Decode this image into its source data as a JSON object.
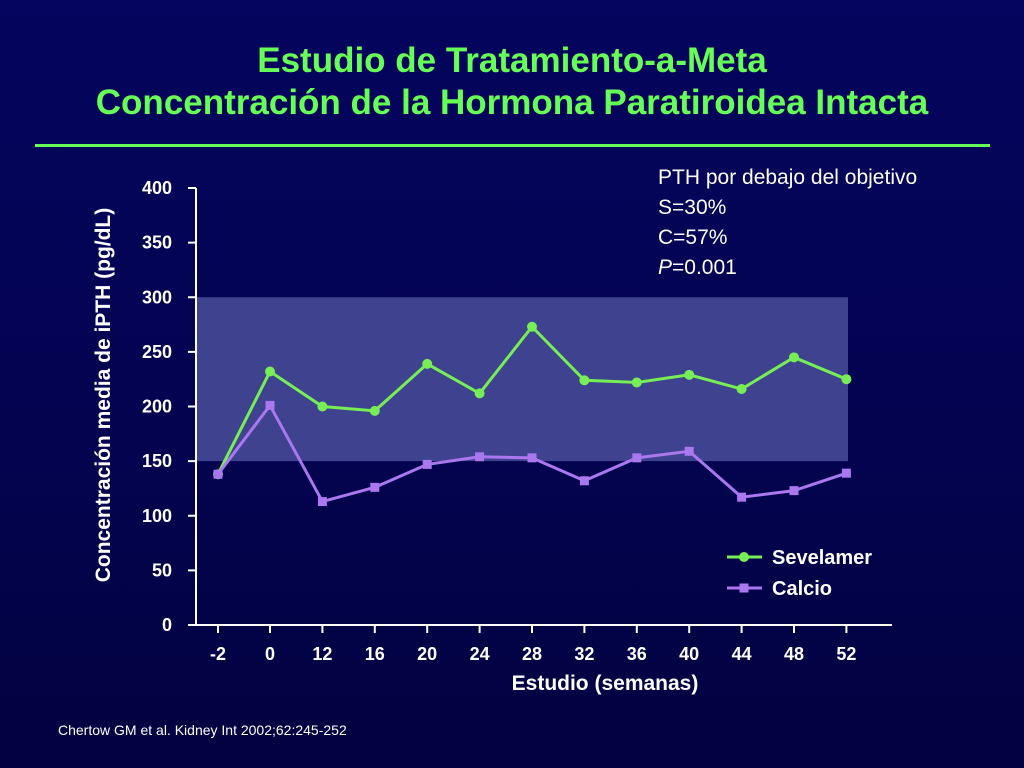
{
  "slide": {
    "title_line1": "Estudio de Tratamiento-a-Meta",
    "title_line2": "Concentración de la Hormona Paratiroidea Intacta",
    "citation": "Chertow GM et al. Kidney Int 2002;62:245-252",
    "accent_color": "#66ff55"
  },
  "annotation": {
    "line1": "PTH por debajo del objetivo",
    "line2": "S=30%",
    "line3": "C=57%",
    "line4_italic": "P",
    "line4_rest": "=0.001"
  },
  "chart_data": {
    "type": "line",
    "xlabel": "Estudio (semanas)",
    "ylabel": "Concentración media de iPTH (pg/dL)",
    "categories": [
      "-2",
      "0",
      "12",
      "16",
      "20",
      "24",
      "28",
      "32",
      "36",
      "40",
      "44",
      "48",
      "52"
    ],
    "ylim": [
      0,
      400
    ],
    "yticks": [
      0,
      50,
      100,
      150,
      200,
      250,
      300,
      350,
      400
    ],
    "target_band": [
      150,
      300
    ],
    "target_band_color": "#4a4e9a",
    "grid": false,
    "legend_position": "bottom-right",
    "series": [
      {
        "name": "Sevelamer",
        "color": "#77ee55",
        "marker": "circle",
        "values": [
          138,
          232,
          200,
          196,
          239,
          212,
          273,
          224,
          222,
          229,
          216,
          245,
          225
        ]
      },
      {
        "name": "Calcio",
        "color": "#aa77ee",
        "marker": "square",
        "values": [
          138,
          201,
          113,
          126,
          147,
          154,
          153,
          132,
          153,
          159,
          117,
          123,
          139
        ]
      }
    ]
  }
}
